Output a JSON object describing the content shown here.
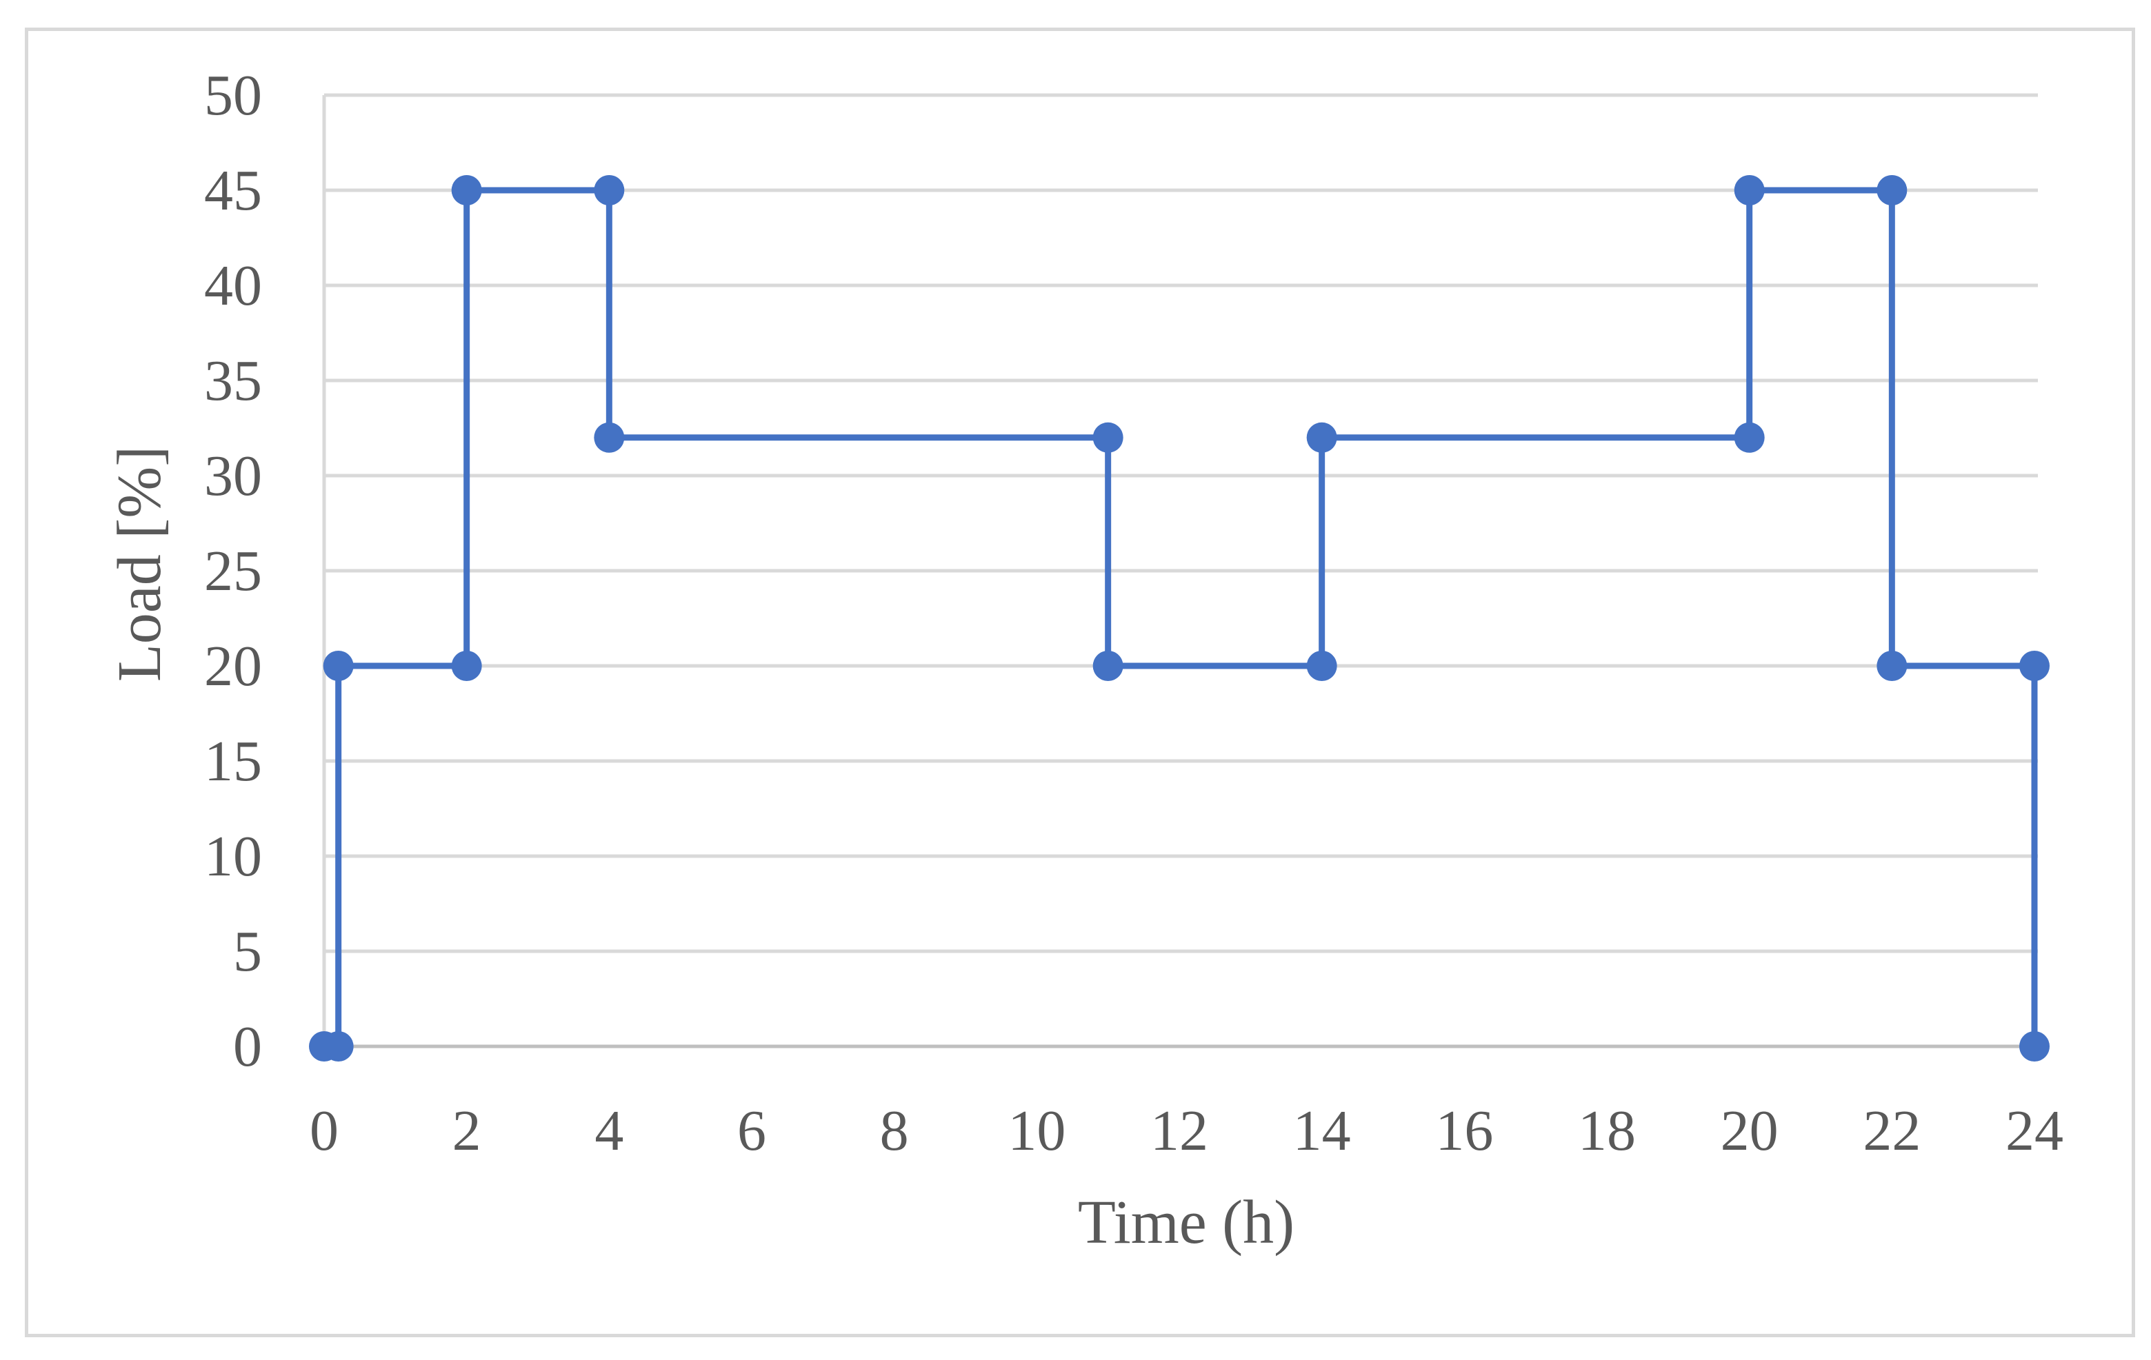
{
  "chart_data": {
    "type": "line",
    "title": "",
    "xlabel": "Time (h)",
    "ylabel": "Load [%]",
    "xlim": [
      0,
      24
    ],
    "ylim": [
      0,
      50
    ],
    "x_ticks": [
      0,
      2,
      4,
      6,
      8,
      10,
      12,
      14,
      16,
      18,
      20,
      22,
      24
    ],
    "y_ticks": [
      0,
      5,
      10,
      15,
      20,
      25,
      30,
      35,
      40,
      45,
      50
    ],
    "grid": true,
    "legend": "none",
    "series": [
      {
        "color": "#4472c4",
        "marker": "circle",
        "points": [
          {
            "x": 0,
            "y": 0
          },
          {
            "x": 0.2,
            "y": 0
          },
          {
            "x": 0.2,
            "y": 20
          },
          {
            "x": 2,
            "y": 20
          },
          {
            "x": 2,
            "y": 45
          },
          {
            "x": 4,
            "y": 45
          },
          {
            "x": 4,
            "y": 32
          },
          {
            "x": 11,
            "y": 32
          },
          {
            "x": 11,
            "y": 20
          },
          {
            "x": 14,
            "y": 20
          },
          {
            "x": 14,
            "y": 32
          },
          {
            "x": 20,
            "y": 32
          },
          {
            "x": 20,
            "y": 45
          },
          {
            "x": 22,
            "y": 45
          },
          {
            "x": 22,
            "y": 20
          },
          {
            "x": 24,
            "y": 20
          },
          {
            "x": 24,
            "y": 0
          }
        ]
      }
    ]
  }
}
